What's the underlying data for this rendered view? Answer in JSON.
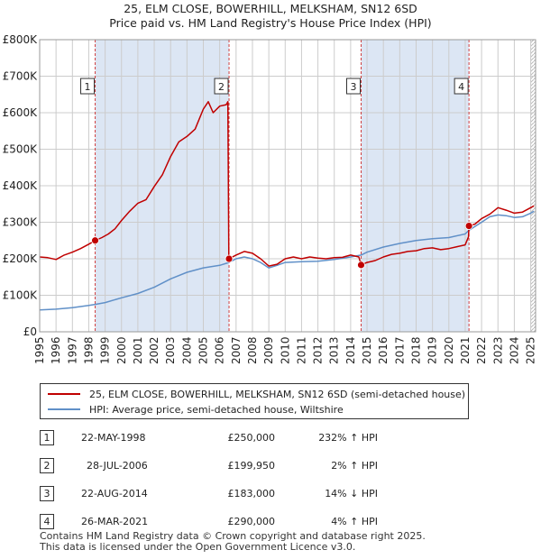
{
  "title_line1": "25, ELM CLOSE, BOWERHILL, MELKSHAM, SN12 6SD",
  "title_line2": "Price paid vs. HM Land Registry's House Price Index (HPI)",
  "colors": {
    "price": "#c00000",
    "hpi": "#6090c8",
    "shade": "#dce6f4",
    "grid": "#cccccc"
  },
  "legend": {
    "price": "25, ELM CLOSE, BOWERHILL, MELKSHAM, SN12 6SD (semi-detached house)",
    "hpi": "HPI: Average price, semi-detached house, Wiltshire"
  },
  "sales": [
    {
      "num": "1",
      "date": "22-MAY-1998",
      "price": "£250,000",
      "hpi": "232% ↑ HPI"
    },
    {
      "num": "2",
      "date": "28-JUL-2006",
      "price": "£199,950",
      "hpi": "2% ↑ HPI"
    },
    {
      "num": "3",
      "date": "22-AUG-2014",
      "price": "£183,000",
      "hpi": "14% ↓ HPI"
    },
    {
      "num": "4",
      "date": "26-MAR-2021",
      "price": "£290,000",
      "hpi": "4% ↑ HPI"
    }
  ],
  "footer_line1": "Contains HM Land Registry data © Crown copyright and database right 2025.",
  "footer_line2": "This data is licensed under the Open Government Licence v3.0.",
  "chart_data": {
    "type": "line",
    "title": "25, ELM CLOSE, BOWERHILL, MELKSHAM, SN12 6SD — Price paid vs. HM Land Registry's House Price Index (HPI)",
    "xlabel": "",
    "ylabel": "",
    "xlim": [
      1995,
      2025.3
    ],
    "ylim": [
      0,
      800000
    ],
    "x_ticks": [
      1995,
      1996,
      1997,
      1998,
      1999,
      2000,
      2001,
      2002,
      2003,
      2004,
      2005,
      2006,
      2007,
      2008,
      2009,
      2010,
      2011,
      2012,
      2013,
      2014,
      2015,
      2016,
      2017,
      2018,
      2019,
      2020,
      2021,
      2022,
      2023,
      2024,
      2025
    ],
    "y_ticks": [
      0,
      100000,
      200000,
      300000,
      400000,
      500000,
      600000,
      700000,
      800000
    ],
    "y_tick_labels": [
      "£0",
      "£100K",
      "£200K",
      "£300K",
      "£400K",
      "£500K",
      "£600K",
      "£700K",
      "£800K"
    ],
    "grid": true,
    "sale_markers": [
      {
        "label": "1",
        "x": 1998.39,
        "y": 250000
      },
      {
        "label": "2",
        "x": 2006.57,
        "y": 199950
      },
      {
        "label": "3",
        "x": 2014.64,
        "y": 183000
      },
      {
        "label": "4",
        "x": 2021.23,
        "y": 290000
      }
    ],
    "series": [
      {
        "name": "25, ELM CLOSE, BOWERHILL, MELKSHAM, SN12 6SD (semi-detached house)",
        "color": "#c00000",
        "points": [
          [
            1995.0,
            205000
          ],
          [
            1995.5,
            203000
          ],
          [
            1996.0,
            198000
          ],
          [
            1996.5,
            210000
          ],
          [
            1997.0,
            218000
          ],
          [
            1997.5,
            228000
          ],
          [
            1998.0,
            240000
          ],
          [
            1998.39,
            250000
          ],
          [
            1998.8,
            258000
          ],
          [
            1999.2,
            268000
          ],
          [
            1999.6,
            282000
          ],
          [
            2000.0,
            305000
          ],
          [
            2000.5,
            330000
          ],
          [
            2001.0,
            352000
          ],
          [
            2001.5,
            362000
          ],
          [
            2002.0,
            398000
          ],
          [
            2002.5,
            430000
          ],
          [
            2003.0,
            480000
          ],
          [
            2003.5,
            520000
          ],
          [
            2004.0,
            535000
          ],
          [
            2004.5,
            555000
          ],
          [
            2005.0,
            610000
          ],
          [
            2005.3,
            630000
          ],
          [
            2005.6,
            600000
          ],
          [
            2006.0,
            618000
          ],
          [
            2006.4,
            622000
          ],
          [
            2006.5,
            630000
          ],
          [
            2006.56,
            200000
          ],
          [
            2006.57,
            199950
          ],
          [
            2007.0,
            210000
          ],
          [
            2007.5,
            220000
          ],
          [
            2008.0,
            215000
          ],
          [
            2008.5,
            200000
          ],
          [
            2009.0,
            180000
          ],
          [
            2009.5,
            185000
          ],
          [
            2010.0,
            200000
          ],
          [
            2010.5,
            205000
          ],
          [
            2011.0,
            200000
          ],
          [
            2011.5,
            205000
          ],
          [
            2012.0,
            202000
          ],
          [
            2012.5,
            200000
          ],
          [
            2013.0,
            203000
          ],
          [
            2013.5,
            204000
          ],
          [
            2014.0,
            210000
          ],
          [
            2014.5,
            205000
          ],
          [
            2014.64,
            183000
          ],
          [
            2015.0,
            190000
          ],
          [
            2015.5,
            195000
          ],
          [
            2016.0,
            205000
          ],
          [
            2016.5,
            212000
          ],
          [
            2017.0,
            215000
          ],
          [
            2017.5,
            220000
          ],
          [
            2018.0,
            222000
          ],
          [
            2018.5,
            228000
          ],
          [
            2019.0,
            230000
          ],
          [
            2019.5,
            225000
          ],
          [
            2020.0,
            228000
          ],
          [
            2020.5,
            233000
          ],
          [
            2021.0,
            238000
          ],
          [
            2021.2,
            260000
          ],
          [
            2021.23,
            290000
          ],
          [
            2021.6,
            295000
          ],
          [
            2022.0,
            310000
          ],
          [
            2022.5,
            322000
          ],
          [
            2023.0,
            340000
          ],
          [
            2023.5,
            333000
          ],
          [
            2024.0,
            325000
          ],
          [
            2024.5,
            328000
          ],
          [
            2025.0,
            340000
          ],
          [
            2025.2,
            345000
          ]
        ]
      },
      {
        "name": "HPI: Average price, semi-detached house, Wiltshire",
        "color": "#6090c8",
        "points": [
          [
            1995.0,
            60000
          ],
          [
            1996.0,
            62000
          ],
          [
            1997.0,
            66000
          ],
          [
            1998.0,
            72000
          ],
          [
            1998.39,
            75000
          ],
          [
            1999.0,
            80000
          ],
          [
            2000.0,
            93000
          ],
          [
            2001.0,
            105000
          ],
          [
            2002.0,
            122000
          ],
          [
            2003.0,
            145000
          ],
          [
            2004.0,
            163000
          ],
          [
            2005.0,
            175000
          ],
          [
            2006.0,
            182000
          ],
          [
            2006.57,
            190000
          ],
          [
            2007.0,
            200000
          ],
          [
            2007.5,
            205000
          ],
          [
            2008.0,
            200000
          ],
          [
            2008.5,
            190000
          ],
          [
            2009.0,
            175000
          ],
          [
            2009.5,
            182000
          ],
          [
            2010.0,
            190000
          ],
          [
            2011.0,
            192000
          ],
          [
            2012.0,
            193000
          ],
          [
            2013.0,
            198000
          ],
          [
            2014.0,
            205000
          ],
          [
            2014.64,
            210000
          ],
          [
            2015.0,
            218000
          ],
          [
            2016.0,
            232000
          ],
          [
            2017.0,
            242000
          ],
          [
            2018.0,
            250000
          ],
          [
            2019.0,
            255000
          ],
          [
            2020.0,
            258000
          ],
          [
            2021.0,
            268000
          ],
          [
            2021.23,
            278000
          ],
          [
            2022.0,
            300000
          ],
          [
            2022.5,
            315000
          ],
          [
            2023.0,
            320000
          ],
          [
            2023.5,
            318000
          ],
          [
            2024.0,
            313000
          ],
          [
            2024.5,
            315000
          ],
          [
            2025.0,
            325000
          ],
          [
            2025.2,
            330000
          ]
        ]
      }
    ]
  }
}
